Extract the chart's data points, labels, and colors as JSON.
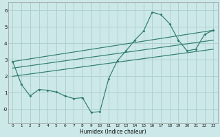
{
  "background_color": "#cce8e8",
  "grid_color": "#b0d0d0",
  "line_color": "#2e7d6e",
  "xlabel": "Humidex (Indice chaleur)",
  "xlim": [
    -0.5,
    23.5
  ],
  "ylim": [
    -0.85,
    6.5
  ],
  "xticks": [
    0,
    1,
    2,
    3,
    4,
    5,
    6,
    7,
    8,
    9,
    10,
    11,
    12,
    13,
    14,
    15,
    16,
    17,
    18,
    19,
    20,
    21,
    22,
    23
  ],
  "yticks": [
    0,
    1,
    2,
    3,
    4,
    5,
    6
  ],
  "ytick_labels": [
    "-0",
    "1",
    "2",
    "3",
    "4",
    "5",
    "6"
  ],
  "main_series": {
    "x": [
      0,
      1,
      2,
      3,
      4,
      5,
      6,
      7,
      8,
      9,
      10,
      11,
      12,
      13,
      14,
      15,
      16,
      17,
      18,
      19,
      20,
      21,
      22,
      23
    ],
    "y": [
      2.9,
      1.5,
      0.8,
      1.2,
      1.15,
      1.05,
      0.8,
      0.65,
      0.7,
      -0.2,
      -0.15,
      1.85,
      2.95,
      3.55,
      4.2,
      4.75,
      5.9,
      5.75,
      5.2,
      4.2,
      3.55,
      3.65,
      4.55,
      4.8
    ]
  },
  "trend_lines": [
    {
      "x": [
        0,
        23
      ],
      "y": [
        2.9,
        4.8
      ]
    },
    {
      "x": [
        0,
        23
      ],
      "y": [
        2.5,
        4.2
      ]
    },
    {
      "x": [
        0,
        23
      ],
      "y": [
        2.0,
        3.65
      ]
    }
  ]
}
